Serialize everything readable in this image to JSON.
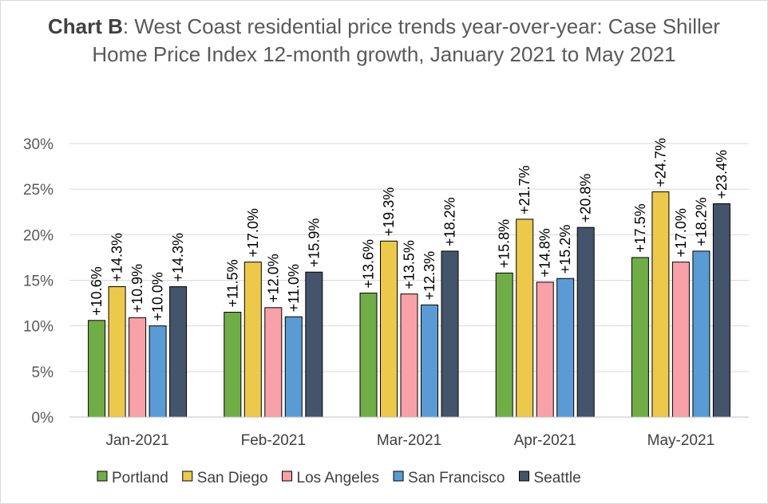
{
  "title": {
    "bold": "Chart B",
    "rest": ": West Coast residential price trends year-over-year: Case Shiller Home Price Index 12-month growth, January 2021 to May 2021"
  },
  "chart_data": {
    "type": "bar",
    "categories": [
      "Jan-2021",
      "Feb-2021",
      "Mar-2021",
      "Apr-2021",
      "May-2021"
    ],
    "ylim": [
      0,
      30
    ],
    "yticks": [
      0,
      5,
      10,
      15,
      20,
      25,
      30
    ],
    "ytick_labels": [
      "0%",
      "5%",
      "10%",
      "15%",
      "20%",
      "25%",
      "30%"
    ],
    "grid": true,
    "legend_position": "bottom",
    "series": [
      {
        "name": "Portland",
        "color": "#70ad47",
        "values": [
          10.6,
          11.5,
          13.6,
          15.8,
          17.5
        ],
        "labels": [
          "+10.6%",
          "+11.5%",
          "+13.6%",
          "+15.8%",
          "+17.5%"
        ]
      },
      {
        "name": "San Diego",
        "color": "#ecc94b",
        "values": [
          14.3,
          17.0,
          19.3,
          21.7,
          24.7
        ],
        "labels": [
          "+14.3%",
          "+17.0%",
          "+19.3%",
          "+21.7%",
          "+24.7%"
        ]
      },
      {
        "name": "Los Angeles",
        "color": "#f8a1a8",
        "values": [
          10.9,
          12.0,
          13.5,
          14.8,
          17.0
        ],
        "labels": [
          "+10.9%",
          "+12.0%",
          "+13.5%",
          "+14.8%",
          "+17.0%"
        ]
      },
      {
        "name": "San Francisco",
        "color": "#5b9bd5",
        "values": [
          10.0,
          11.0,
          12.3,
          15.2,
          18.2
        ],
        "labels": [
          "+10.0%",
          "+11.0%",
          "+12.3%",
          "+15.2%",
          "+18.2%"
        ]
      },
      {
        "name": "Seattle",
        "color": "#44546a",
        "values": [
          14.3,
          15.9,
          18.2,
          20.8,
          23.4
        ],
        "labels": [
          "+14.3%",
          "+15.9%",
          "+18.2%",
          "+20.8%",
          "+23.4%"
        ]
      }
    ]
  }
}
